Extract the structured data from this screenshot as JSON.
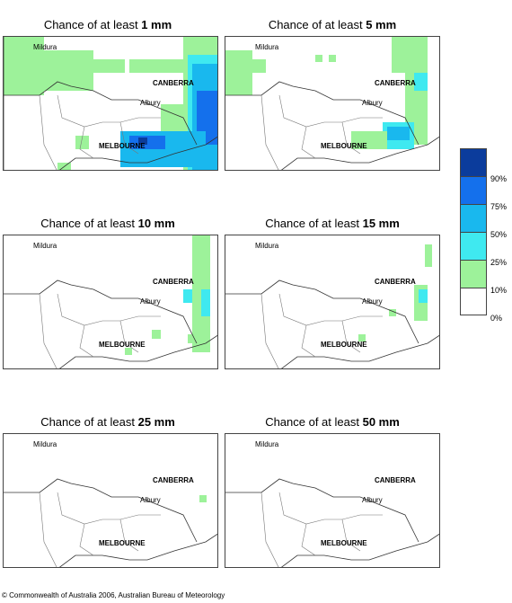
{
  "panels": [
    {
      "title_prefix": "Chance of at least ",
      "amount": "1 mm"
    },
    {
      "title_prefix": "Chance of at least ",
      "amount": "5 mm"
    },
    {
      "title_prefix": "Chance of at least ",
      "amount": "10 mm"
    },
    {
      "title_prefix": "Chance of at least ",
      "amount": "15 mm"
    },
    {
      "title_prefix": "Chance of at least ",
      "amount": "25 mm"
    },
    {
      "title_prefix": "Chance of at least ",
      "amount": "50 mm"
    }
  ],
  "places": {
    "mildura": "Mildura",
    "canberra": "CANBERRA",
    "albury": "Albury",
    "melbourne": "MELBOURNE"
  },
  "legend": {
    "labels": [
      "90%",
      "75%",
      "50%",
      "25%",
      "10%",
      "0%"
    ],
    "colors": [
      "#0b3c9c",
      "#1470ec",
      "#19b8ee",
      "#3fe9f0",
      "#9df29a",
      "#ffffff"
    ]
  },
  "copyright": "© Commonwealth of Australia 2006, Australian Bureau of Meteorology"
}
